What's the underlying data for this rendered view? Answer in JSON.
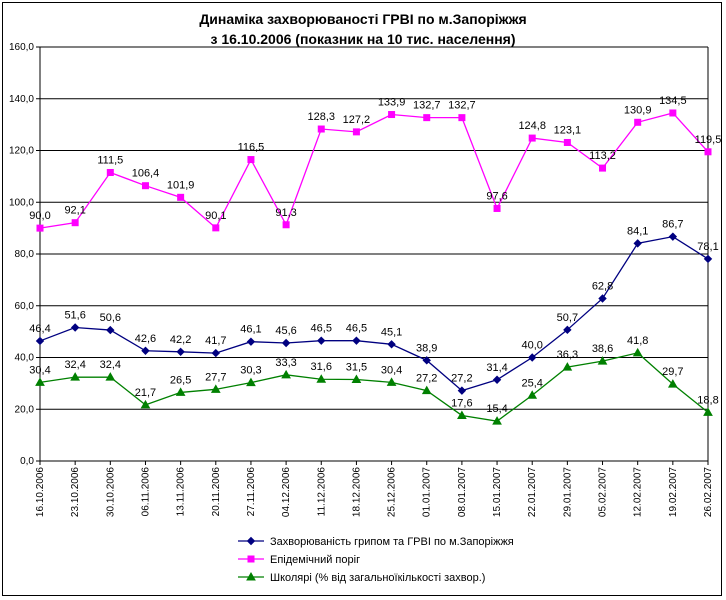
{
  "chart_data": {
    "type": "line",
    "title": "Динаміка захворюваності ГРВІ по м.Запоріжжя",
    "subtitle": "з 16.10.2006 (показник на 10 тис. населення)",
    "xlabel": "",
    "ylabel": "",
    "ylim": [
      0,
      160
    ],
    "ytick_labels": [
      "0,0",
      "20,0",
      "40,0",
      "60,0",
      "80,0",
      "100,0",
      "120,0",
      "140,0",
      "160,0"
    ],
    "grid": true,
    "legend_position": "bottom",
    "categories": [
      "16.10.2006",
      "23.10.2006",
      "30.10.2006",
      "06.11.2006",
      "13.11.2006",
      "20.11.2006",
      "27.11.2006",
      "04.12.2006",
      "11.12.2006",
      "18.12.2006",
      "25.12.2006",
      "01.01.2007",
      "08.01.2007",
      "15.01.2007",
      "22.01.2007",
      "29.01.2007",
      "05.02.2007",
      "12.02.2007",
      "19.02.2007",
      "26.02.2007"
    ],
    "series": [
      {
        "name": "Захворюваність грипом та ГРВІ по м.Запоріжжя",
        "color": "#000080",
        "marker": "diamond",
        "values": [
          46.4,
          51.6,
          50.6,
          42.6,
          42.2,
          41.7,
          46.1,
          45.6,
          46.5,
          46.5,
          45.1,
          38.9,
          27.2,
          31.4,
          40.0,
          50.7,
          62.8,
          84.1,
          86.7,
          78.1
        ],
        "labels": [
          "46,4",
          "51,6",
          "50,6",
          "42,6",
          "42,2",
          "41,7",
          "46,1",
          "45,6",
          "46,5",
          "46,5",
          "45,1",
          "38,9",
          "27,2",
          "31,4",
          "40,0",
          "50,7",
          "62,8",
          "84,1",
          "86,7",
          "78,1"
        ]
      },
      {
        "name": "Епідемічний поріг",
        "color": "#ff00ff",
        "marker": "square",
        "values": [
          90.0,
          92.1,
          111.5,
          106.4,
          101.9,
          90.1,
          116.5,
          91.3,
          128.3,
          127.2,
          133.9,
          132.7,
          132.7,
          97.6,
          124.8,
          123.1,
          113.2,
          130.9,
          134.5,
          119.5
        ],
        "labels": [
          "90,0",
          "92,1",
          "111,5",
          "106,4",
          "101,9",
          "90,1",
          "116,5",
          "91,3",
          "128,3",
          "127,2",
          "133,9",
          "132,7",
          "132,7",
          "97,6",
          "124,8",
          "123,1",
          "113,2",
          "130,9",
          "134,5",
          "119,5"
        ]
      },
      {
        "name": "Школярі (% від загальноїкількості захвор.)",
        "color": "#008000",
        "marker": "triangle",
        "values": [
          30.4,
          32.4,
          32.4,
          21.7,
          26.5,
          27.7,
          30.3,
          33.3,
          31.6,
          31.5,
          30.4,
          27.2,
          17.6,
          15.4,
          25.4,
          36.3,
          38.6,
          41.8,
          29.7,
          18.8
        ],
        "labels": [
          "30,4",
          "32,4",
          "32,4",
          "21,7",
          "26,5",
          "27,7",
          "30,3",
          "33,3",
          "31,6",
          "31,5",
          "30,4",
          "27,2",
          "17,6",
          "15,4",
          "25,4",
          "36,3",
          "38,6",
          "41,8",
          "29,7",
          "18,8"
        ]
      }
    ]
  }
}
